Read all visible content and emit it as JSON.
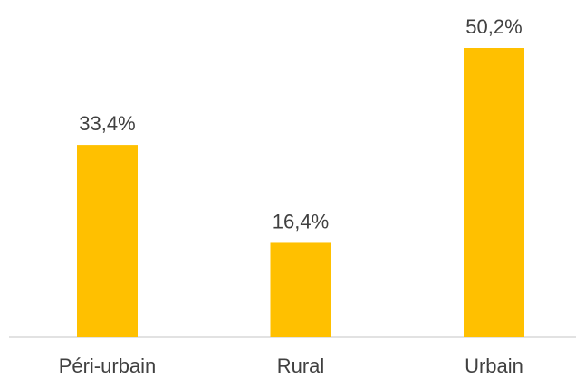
{
  "chart_data": {
    "type": "bar",
    "categories": [
      "Péri-urbain",
      "Rural",
      "Urbain"
    ],
    "values": [
      33.4,
      16.4,
      50.2
    ],
    "value_labels": [
      "33,4%",
      "16,4%",
      "50,2%"
    ],
    "color": "#ffc000"
  }
}
